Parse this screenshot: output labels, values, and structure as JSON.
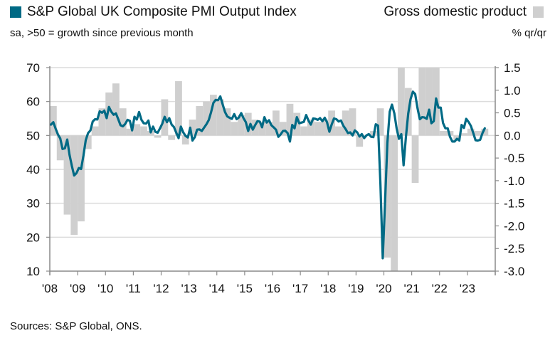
{
  "legend": {
    "pmi_label": "S&P Global UK Composite PMI Output Index",
    "gdp_label": "Gross domestic product",
    "pmi_color": "#006a85",
    "gdp_color": "#cfcfcf"
  },
  "subtitle_left": "sa, >50 = growth since previous month",
  "subtitle_right": "% qr/qr",
  "source": "Sources: S&P Global, ONS.",
  "chart_data": {
    "type": "line+bar",
    "title": "S&P Global UK Composite PMI Output Index vs Gross domestic product",
    "x_tick_labels": [
      "'08",
      "'09",
      "'10",
      "'11",
      "'12",
      "'13",
      "'14",
      "'15",
      "'16",
      "'17",
      "'18",
      "'19",
      "'20",
      "'21",
      "'22",
      "'23"
    ],
    "x_range": [
      2008,
      2024
    ],
    "left_axis": {
      "label": "sa, >50 = growth since previous month",
      "range": [
        10,
        70
      ],
      "ticks": [
        10,
        20,
        30,
        40,
        50,
        60,
        70
      ]
    },
    "right_axis": {
      "label": "% qr/qr",
      "range": [
        -3.0,
        1.5
      ],
      "ticks": [
        "1.5",
        "1.0",
        "0.5",
        "0.0",
        "-0.5",
        "-1.0",
        "-1.5",
        "-2.0",
        "-2.5",
        "-3.0"
      ]
    },
    "grid": true,
    "series": [
      {
        "name": "S&P Global UK Composite PMI Output Index",
        "axis": "left",
        "type": "line",
        "frequency": "monthly",
        "start": "2008-01",
        "values": [
          53.2,
          53.9,
          52.0,
          50.3,
          49.1,
          46.0,
          46.2,
          48.8,
          44.3,
          41.0,
          38.2,
          38.9,
          40.4,
          40.1,
          44.1,
          48.6,
          50.7,
          51.5,
          54.1,
          54.8,
          54.7,
          57.1,
          56.7,
          57.3,
          55.1,
          58.4,
          57.0,
          56.1,
          56.5,
          54.8,
          53.0,
          52.7,
          53.4,
          54.6,
          54.3,
          51.5,
          55.5,
          54.7,
          56.9,
          54.6,
          53.6,
          53.5,
          54.4,
          50.9,
          52.6,
          51.1,
          50.8,
          52.1,
          53.5,
          55.5,
          53.9,
          55.1,
          53.2,
          52.5,
          50.8,
          49.2,
          52.6,
          50.9,
          49.9,
          49.4,
          52.3,
          48.5,
          49.5,
          51.7,
          51.8,
          51.3,
          52.3,
          53.3,
          54.5,
          56.8,
          59.6,
          60.5,
          60.4,
          61.5,
          59.2,
          56.9,
          55.6,
          55.2,
          54.9,
          56.3,
          54.8,
          55.3,
          56.6,
          55.1,
          53.9,
          51.3,
          53.4,
          51.7,
          53.0,
          54.2,
          54.1,
          52.4,
          55.4,
          53.8,
          54.5,
          53.0,
          52.4,
          51.7,
          49.6,
          50.3,
          51.3,
          51.4,
          50.7,
          48.2,
          53.1,
          52.1,
          55.4,
          53.6,
          53.8,
          54.0,
          56.0,
          54.4,
          53.2,
          55.0,
          54.9,
          54.6,
          55.1,
          54.2,
          55.2,
          53.9,
          51.1,
          53.2,
          55.0,
          54.8,
          54.1,
          54.4,
          52.9,
          51.9,
          50.7,
          50.9,
          50.0,
          51.5,
          50.9,
          49.7,
          50.4,
          49.2,
          50.0,
          50.4,
          49.6,
          49.5,
          53.3,
          52.9,
          36.0,
          13.8,
          30.0,
          47.7,
          57.0,
          59.1,
          56.5,
          52.1,
          49.0,
          50.4,
          41.2,
          49.6,
          56.4,
          60.7,
          62.9,
          62.2,
          58.0,
          54.8,
          55.4,
          55.3,
          54.9,
          57.6,
          53.6,
          54.2,
          60.9,
          58.2,
          58.2,
          53.7,
          52.1,
          52.1,
          49.6,
          48.2,
          48.2,
          49.0,
          48.5,
          53.1,
          52.2,
          54.9,
          54.0,
          52.8,
          50.8,
          48.6,
          48.5,
          48.7,
          50.7,
          52.1
        ]
      },
      {
        "name": "Gross domestic product",
        "axis": "right",
        "type": "bar",
        "frequency": "quarterly",
        "start": "2008-Q1",
        "unit": "% qr/qr",
        "values": [
          0.65,
          -0.55,
          -1.75,
          -2.2,
          -1.9,
          -0.3,
          0.2,
          0.6,
          0.95,
          1.15,
          0.6,
          0.15,
          0.25,
          0.2,
          0.1,
          -0.05,
          0.8,
          -0.1,
          1.2,
          -0.2,
          0.35,
          0.65,
          0.75,
          0.9,
          0.8,
          0.6,
          0.3,
          0.45,
          0.5,
          0.35,
          0.3,
          0.3,
          0.55,
          0.3,
          0.7,
          0.5,
          0.2,
          0.35,
          0.3,
          0.35,
          0.55,
          0.2,
          0.55,
          0.6,
          -0.25,
          0.0,
          0.1,
          0.6,
          -2.7,
          -3.0,
          1.5,
          1.05,
          -1.05,
          1.5,
          1.5,
          1.5,
          0.1,
          0.1,
          -0.1,
          0.05,
          0.15,
          0.1,
          0.15
        ]
      }
    ]
  }
}
